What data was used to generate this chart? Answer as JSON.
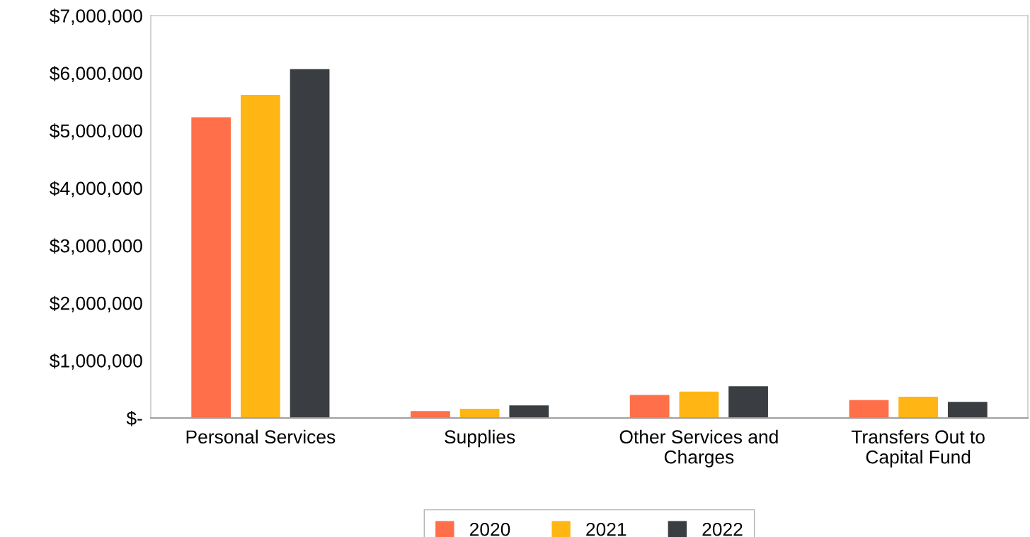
{
  "chart_data": {
    "type": "bar",
    "categories": [
      "Personal Services",
      "Supplies",
      "Other Services and\nCharges",
      "Transfers Out to\nCapital Fund"
    ],
    "series": [
      {
        "name": "2020",
        "color": "#ff6f4a",
        "values": [
          5230000,
          120000,
          400000,
          310000
        ]
      },
      {
        "name": "2021",
        "color": "#ffb615",
        "values": [
          5620000,
          160000,
          460000,
          370000
        ]
      },
      {
        "name": "2022",
        "color": "#3a3e42",
        "values": [
          6070000,
          220000,
          550000,
          280000
        ]
      }
    ],
    "ylim": [
      0,
      7000000
    ],
    "yticks": [
      {
        "value": 0,
        "label": "$-"
      },
      {
        "value": 1000000,
        "label": "$1,000,000"
      },
      {
        "value": 2000000,
        "label": "$2,000,000"
      },
      {
        "value": 3000000,
        "label": "$3,000,000"
      },
      {
        "value": 4000000,
        "label": "$4,000,000"
      },
      {
        "value": 5000000,
        "label": "$5,000,000"
      },
      {
        "value": 6000000,
        "label": "$6,000,000"
      },
      {
        "value": 7000000,
        "label": "$7,000,000"
      }
    ],
    "grid": false,
    "legend": "bottom"
  }
}
